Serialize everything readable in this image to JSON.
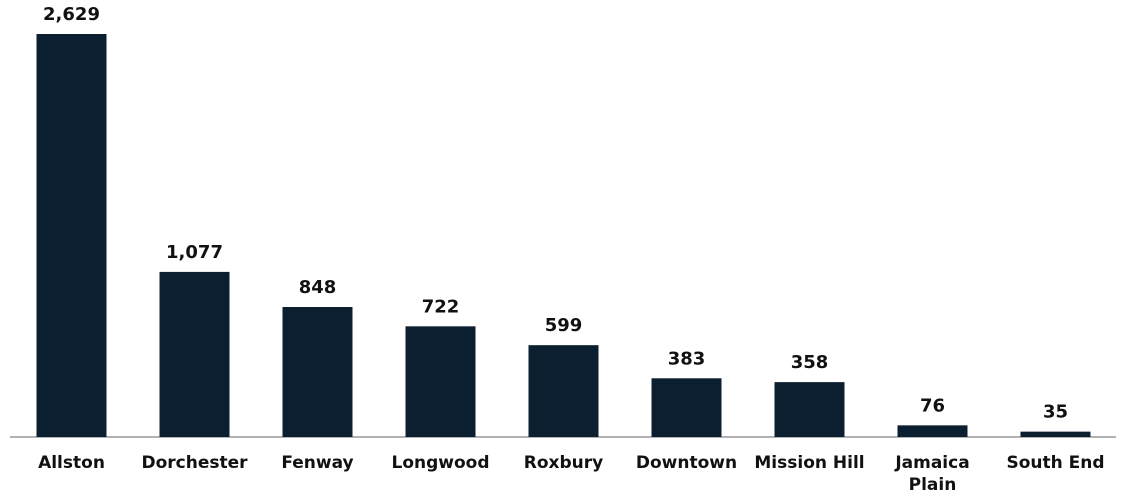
{
  "chart_data": {
    "type": "bar",
    "categories": [
      "Allston",
      "Dorchester",
      "Fenway",
      "Longwood",
      "Roxbury",
      "Downtown",
      "Mission Hill",
      "Jamaica Plain",
      "South End"
    ],
    "values": [
      2629,
      1077,
      848,
      722,
      599,
      383,
      358,
      76,
      35
    ],
    "value_labels": [
      "2,629",
      "1,077",
      "848",
      "722",
      "599",
      "383",
      "358",
      "76",
      "35"
    ],
    "color": "#0c1f30"
  }
}
